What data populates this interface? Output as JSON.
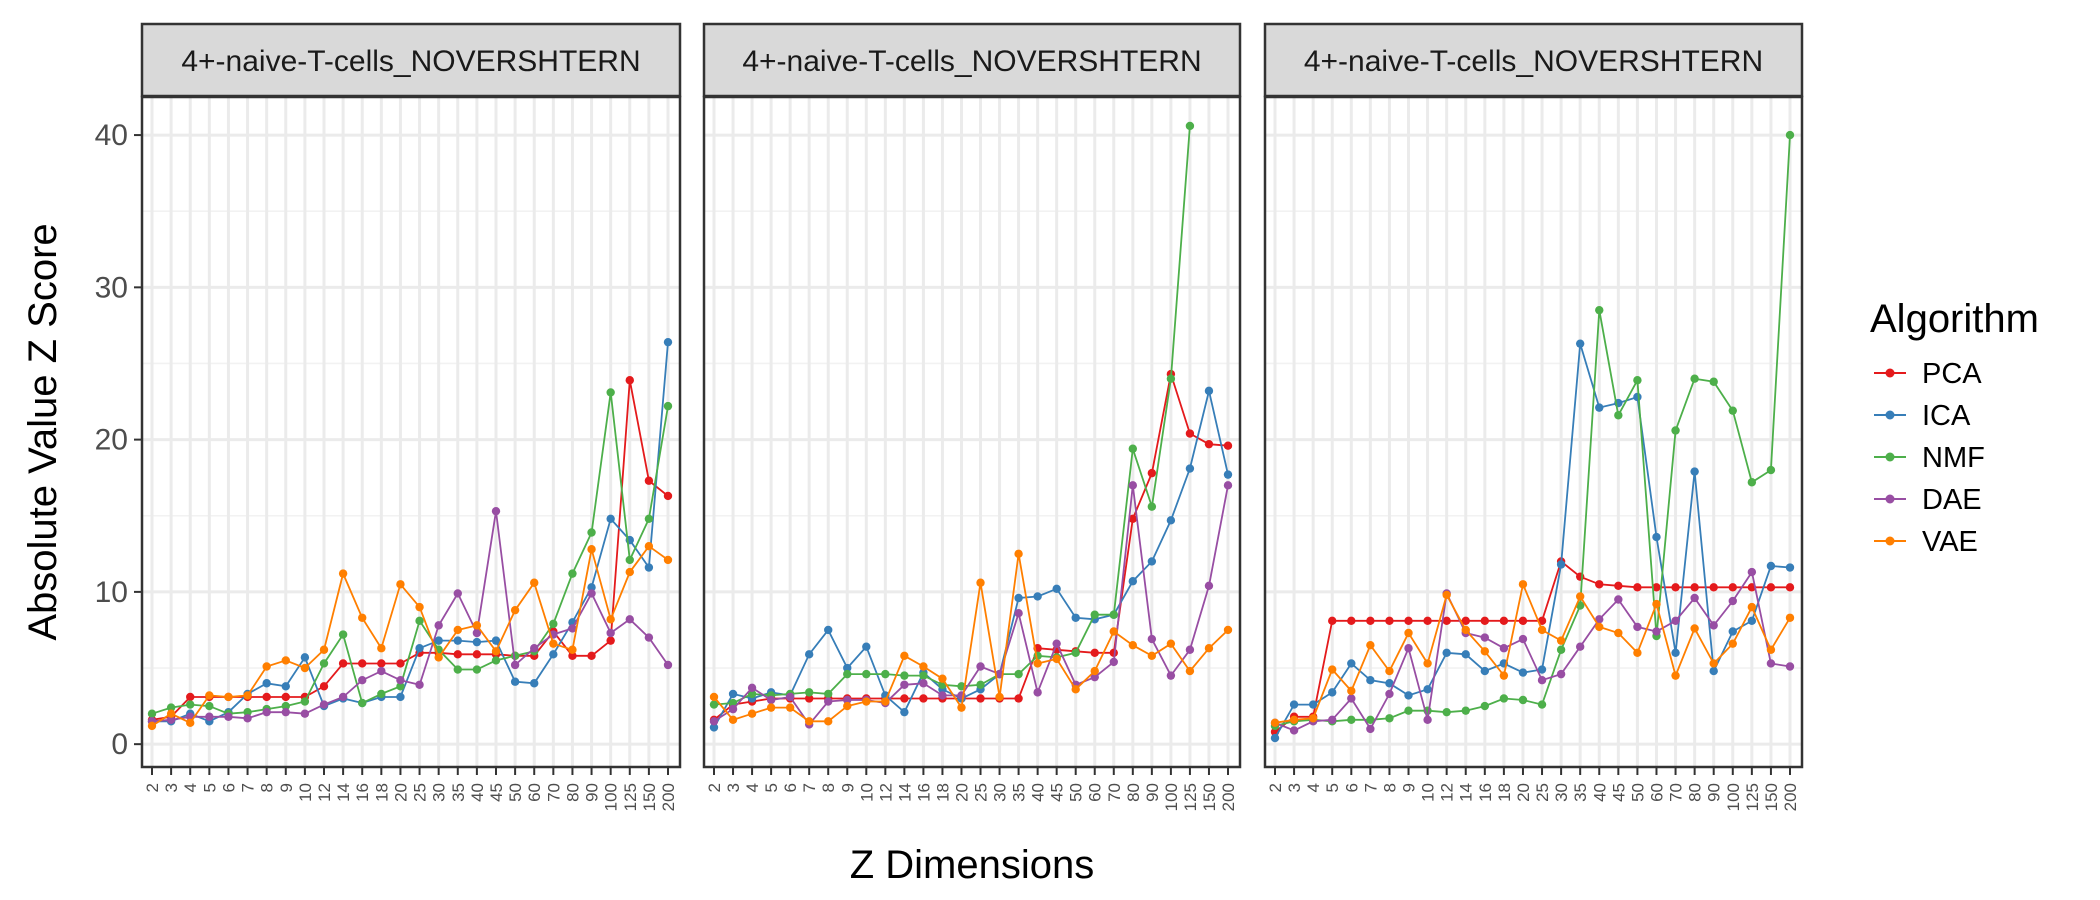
{
  "chart_data": {
    "type": "line",
    "xlabel": "Z Dimensions",
    "ylabel": "Absolute Value Z Score",
    "ylim": [
      -1.5,
      42.5
    ],
    "yticks": [
      0,
      10,
      20,
      30,
      40
    ],
    "grid": true,
    "legend": {
      "title": "Algorithm",
      "position": "right"
    },
    "colors": {
      "PCA": "#e41a1c",
      "ICA": "#377eb8",
      "NMF": "#4daf4a",
      "DAE": "#984ea3",
      "VAE": "#ff7f00"
    },
    "categories": [
      "2",
      "3",
      "4",
      "5",
      "6",
      "7",
      "8",
      "9",
      "10",
      "12",
      "14",
      "16",
      "18",
      "20",
      "25",
      "30",
      "35",
      "40",
      "45",
      "50",
      "60",
      "70",
      "80",
      "90",
      "100",
      "125",
      "150",
      "200"
    ],
    "panels": [
      {
        "strip": "4+-naive-T-cells_NOVERSHTERN",
        "series": [
          {
            "name": "PCA",
            "values": [
              1.6,
              1.8,
              3.1,
              3.1,
              3.1,
              3.1,
              3.1,
              3.1,
              3.1,
              3.8,
              5.3,
              5.3,
              5.3,
              5.3,
              6.0,
              6.0,
              5.9,
              5.9,
              5.9,
              5.8,
              5.8,
              7.4,
              5.8,
              5.8,
              6.8,
              23.9,
              17.3,
              16.3
            ]
          },
          {
            "name": "ICA",
            "values": [
              1.5,
              1.5,
              2.0,
              1.5,
              2.1,
              3.3,
              4.0,
              3.8,
              5.7,
              2.5,
              3.0,
              2.7,
              3.1,
              3.1,
              6.3,
              6.8,
              6.8,
              6.7,
              6.8,
              4.1,
              4.0,
              5.9,
              8.0,
              10.3,
              14.8,
              13.4,
              11.6,
              26.4
            ]
          },
          {
            "name": "NMF",
            "values": [
              2.0,
              2.4,
              2.6,
              2.5,
              2.0,
              2.1,
              2.3,
              2.5,
              2.8,
              5.3,
              7.2,
              2.7,
              3.3,
              3.8,
              8.1,
              6.2,
              4.9,
              4.9,
              5.5,
              5.8,
              6.1,
              7.9,
              11.2,
              13.9,
              23.1,
              12.1,
              14.8,
              22.2
            ]
          },
          {
            "name": "DAE",
            "values": [
              1.5,
              1.6,
              1.8,
              1.8,
              1.8,
              1.7,
              2.1,
              2.1,
              2.0,
              2.6,
              3.1,
              4.2,
              4.8,
              4.2,
              3.9,
              7.8,
              9.9,
              7.3,
              15.3,
              5.2,
              6.3,
              7.2,
              7.6,
              9.9,
              7.3,
              8.2,
              7.0,
              5.2
            ]
          },
          {
            "name": "VAE",
            "values": [
              1.2,
              2.0,
              1.4,
              3.2,
              3.1,
              3.2,
              5.1,
              5.5,
              5.0,
              6.2,
              11.2,
              8.3,
              6.3,
              10.5,
              9.0,
              5.7,
              7.5,
              7.8,
              6.1,
              8.8,
              10.6,
              6.6,
              6.2,
              12.8,
              8.2,
              11.3,
              13.0,
              12.1
            ]
          }
        ]
      },
      {
        "strip": "4+-naive-T-cells_NOVERSHTERN",
        "series": [
          {
            "name": "PCA",
            "values": [
              1.6,
              2.6,
              2.8,
              3.0,
              3.0,
              3.0,
              3.0,
              3.0,
              3.0,
              3.0,
              3.0,
              3.0,
              3.0,
              3.0,
              3.0,
              3.0,
              3.0,
              6.3,
              6.2,
              6.1,
              6.0,
              6.0,
              14.8,
              17.8,
              24.3,
              20.4,
              19.7,
              19.6
            ]
          },
          {
            "name": "ICA",
            "values": [
              1.1,
              3.3,
              3.0,
              3.4,
              3.2,
              5.9,
              7.5,
              5.0,
              6.4,
              3.2,
              2.1,
              4.7,
              3.6,
              3.0,
              3.6,
              4.6,
              9.6,
              9.7,
              10.2,
              8.3,
              8.2,
              8.5,
              10.7,
              12.0,
              14.7,
              18.1,
              23.2,
              17.7
            ]
          },
          {
            "name": "NMF",
            "values": [
              2.6,
              2.7,
              3.3,
              3.2,
              3.3,
              3.4,
              3.3,
              4.6,
              4.6,
              4.6,
              4.5,
              4.5,
              3.9,
              3.8,
              3.9,
              4.6,
              4.6,
              5.8,
              5.7,
              6.0,
              8.5,
              8.5,
              19.4,
              15.6,
              24.0,
              40.6,
              null,
              null
            ]
          },
          {
            "name": "DAE",
            "values": [
              1.5,
              2.3,
              3.7,
              2.9,
              3.1,
              1.3,
              2.8,
              2.9,
              2.9,
              2.7,
              3.9,
              4.0,
              3.2,
              3.2,
              5.1,
              4.6,
              8.6,
              3.4,
              6.6,
              3.9,
              4.4,
              5.4,
              17.0,
              6.9,
              4.5,
              6.2,
              10.4,
              17.0
            ]
          },
          {
            "name": "VAE",
            "values": [
              3.1,
              1.6,
              2.0,
              2.4,
              2.4,
              1.5,
              1.5,
              2.5,
              2.8,
              2.8,
              5.8,
              5.1,
              4.3,
              2.4,
              10.6,
              3.1,
              12.5,
              5.3,
              5.6,
              3.6,
              4.8,
              7.4,
              6.5,
              5.8,
              6.6,
              4.8,
              6.3,
              7.5
            ]
          }
        ]
      },
      {
        "strip": "4+-naive-T-cells_NOVERSHTERN",
        "series": [
          {
            "name": "PCA",
            "values": [
              0.8,
              1.8,
              1.8,
              8.1,
              8.1,
              8.1,
              8.1,
              8.1,
              8.1,
              8.1,
              8.1,
              8.1,
              8.1,
              8.1,
              8.1,
              12.0,
              11.0,
              10.5,
              10.4,
              10.3,
              10.3,
              10.3,
              10.3,
              10.3,
              10.3,
              10.3,
              10.3,
              10.3
            ]
          },
          {
            "name": "ICA",
            "values": [
              0.4,
              2.6,
              2.6,
              3.4,
              5.3,
              4.2,
              4.0,
              3.2,
              3.6,
              6.0,
              5.9,
              4.8,
              5.3,
              4.7,
              4.9,
              11.8,
              26.3,
              22.1,
              22.4,
              22.8,
              13.6,
              6.0,
              17.9,
              4.8,
              7.4,
              8.1,
              11.7,
              11.6
            ]
          },
          {
            "name": "NMF",
            "values": [
              1.2,
              1.5,
              1.6,
              1.5,
              1.6,
              1.6,
              1.7,
              2.2,
              2.2,
              2.1,
              2.2,
              2.5,
              3.0,
              2.9,
              2.6,
              6.2,
              9.1,
              28.5,
              21.6,
              23.9,
              7.1,
              20.6,
              24.0,
              23.8,
              21.9,
              17.2,
              18.0,
              40.0
            ]
          },
          {
            "name": "DAE",
            "values": [
              1.4,
              0.9,
              1.5,
              1.6,
              3.0,
              1.0,
              3.3,
              6.3,
              1.6,
              9.9,
              7.3,
              7.0,
              6.3,
              6.9,
              4.2,
              4.6,
              6.4,
              8.2,
              9.5,
              7.7,
              7.4,
              8.1,
              9.6,
              7.8,
              9.4,
              11.3,
              5.3,
              5.1
            ]
          },
          {
            "name": "VAE",
            "values": [
              1.4,
              1.6,
              1.7,
              4.9,
              3.5,
              6.5,
              4.8,
              7.3,
              5.3,
              9.8,
              7.5,
              6.1,
              4.5,
              10.5,
              7.5,
              6.8,
              9.7,
              7.7,
              7.3,
              6.0,
              9.2,
              4.5,
              7.6,
              5.3,
              6.6,
              9.0,
              6.2,
              8.3
            ]
          }
        ]
      }
    ]
  }
}
